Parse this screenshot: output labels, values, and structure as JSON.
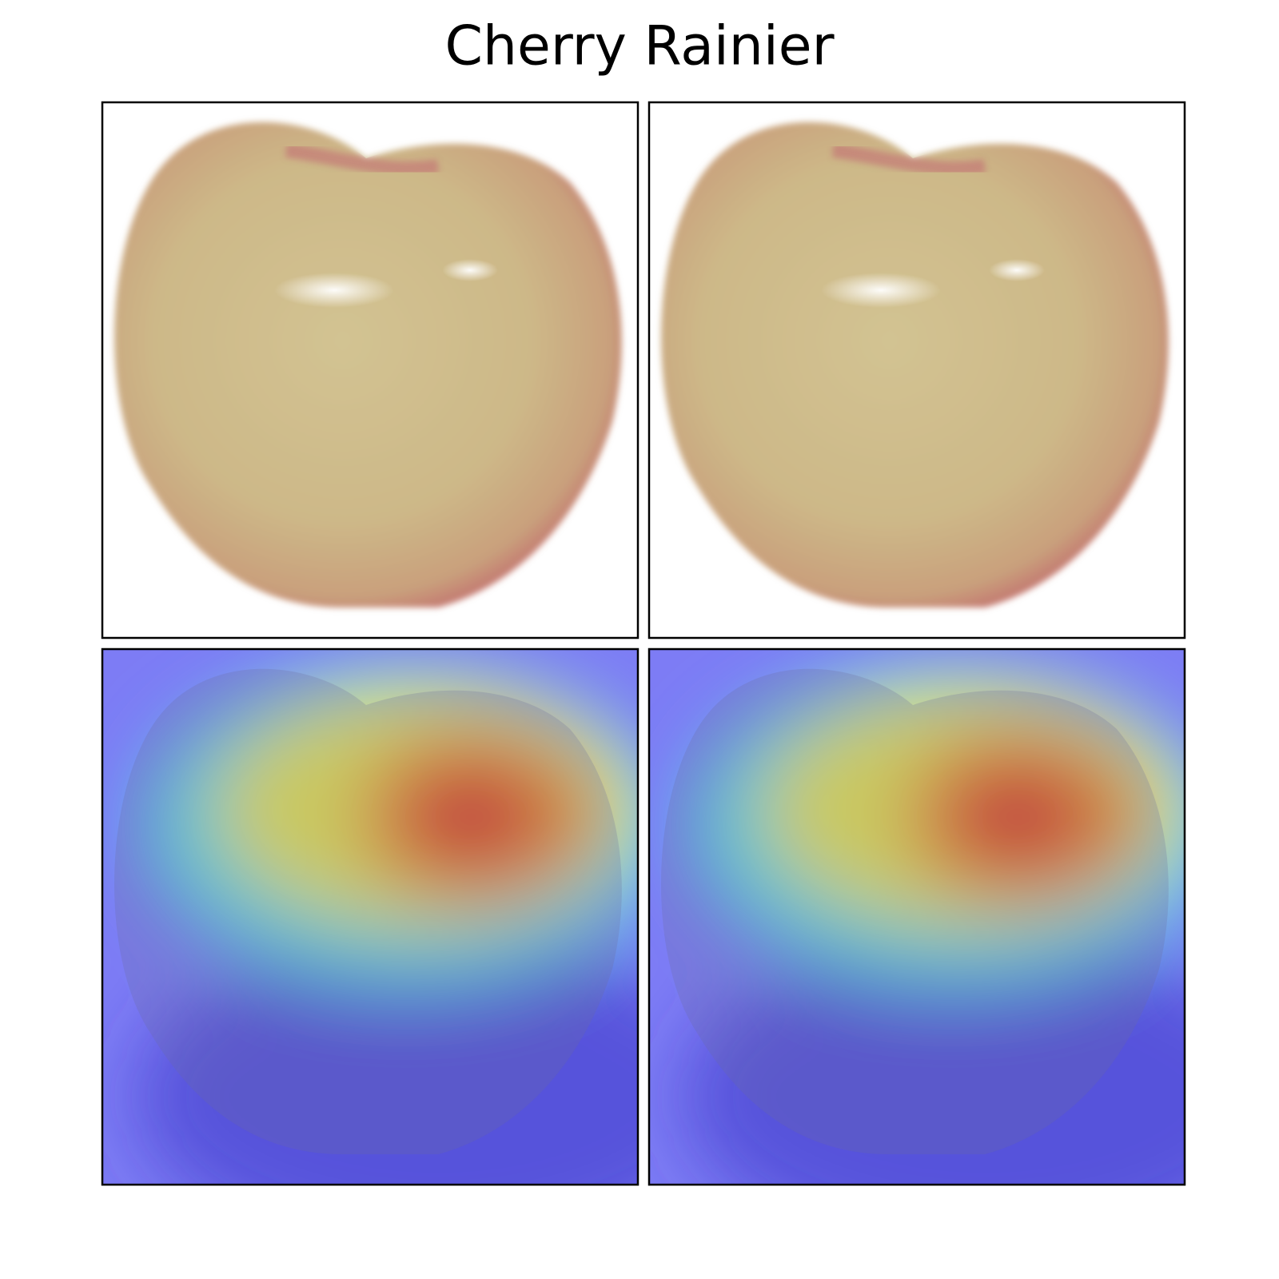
{
  "title": "Cherry Rainier"
}
